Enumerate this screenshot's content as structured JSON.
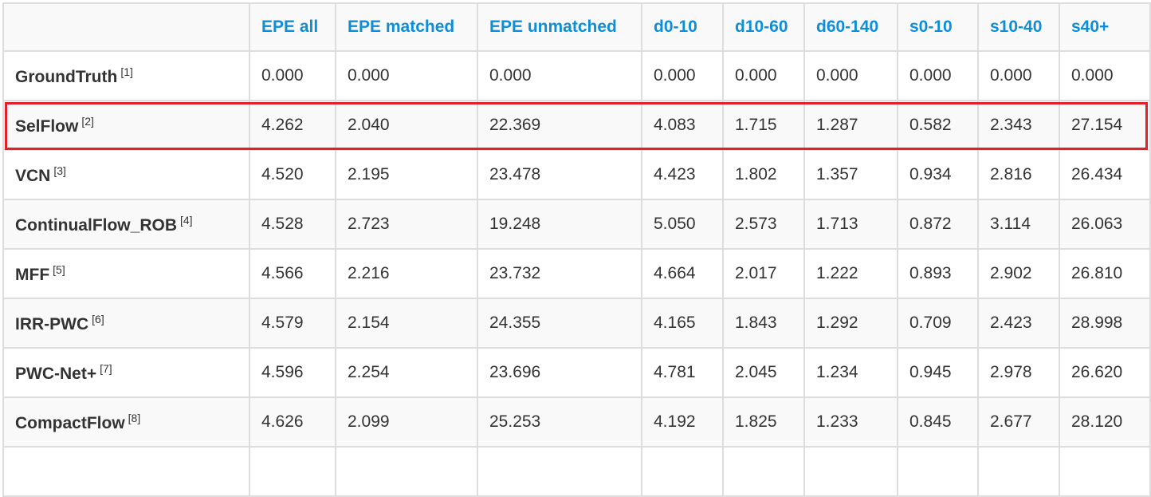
{
  "columns": [
    "",
    "EPE all",
    "EPE matched",
    "EPE unmatched",
    "d0-10",
    "d10-60",
    "d60-140",
    "s0-10",
    "s10-40",
    "s40+"
  ],
  "rows": [
    {
      "name": "GroundTruth",
      "ref": "[1]",
      "values": [
        "0.000",
        "0.000",
        "0.000",
        "0.000",
        "0.000",
        "0.000",
        "0.000",
        "0.000",
        "0.000"
      ]
    },
    {
      "name": "SelFlow",
      "ref": "[2]",
      "values": [
        "4.262",
        "2.040",
        "22.369",
        "4.083",
        "1.715",
        "1.287",
        "0.582",
        "2.343",
        "27.154"
      ],
      "highlighted": true
    },
    {
      "name": "VCN",
      "ref": "[3]",
      "values": [
        "4.520",
        "2.195",
        "23.478",
        "4.423",
        "1.802",
        "1.357",
        "0.934",
        "2.816",
        "26.434"
      ]
    },
    {
      "name": "ContinualFlow_ROB",
      "ref": "[4]",
      "values": [
        "4.528",
        "2.723",
        "19.248",
        "5.050",
        "2.573",
        "1.713",
        "0.872",
        "3.114",
        "26.063"
      ]
    },
    {
      "name": "MFF",
      "ref": "[5]",
      "values": [
        "4.566",
        "2.216",
        "23.732",
        "4.664",
        "2.017",
        "1.222",
        "0.893",
        "2.902",
        "26.810"
      ]
    },
    {
      "name": "IRR-PWC",
      "ref": "[6]",
      "values": [
        "4.579",
        "2.154",
        "24.355",
        "4.165",
        "1.843",
        "1.292",
        "0.709",
        "2.423",
        "28.998"
      ]
    },
    {
      "name": "PWC-Net+",
      "ref": "[7]",
      "values": [
        "4.596",
        "2.254",
        "23.696",
        "4.781",
        "2.045",
        "1.234",
        "0.945",
        "2.978",
        "26.620"
      ]
    },
    {
      "name": "CompactFlow",
      "ref": "[8]",
      "values": [
        "4.626",
        "2.099",
        "25.253",
        "4.192",
        "1.825",
        "1.233",
        "0.845",
        "2.677",
        "28.120"
      ]
    }
  ],
  "colors": {
    "header_text": "#0e8ed6",
    "highlight": "#e3202a",
    "stripe": "#f9f9f9",
    "border": "#dddddd"
  }
}
